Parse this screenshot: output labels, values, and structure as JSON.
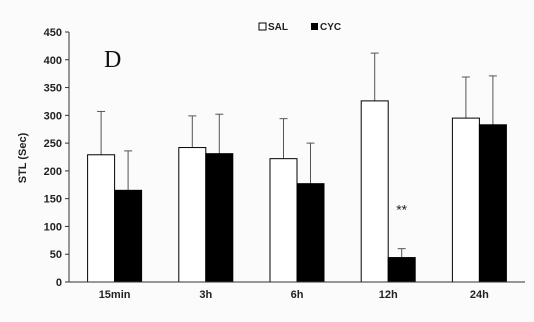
{
  "chart_data": {
    "type": "bar",
    "panel_label": "D",
    "ylabel": "STL (Sec)",
    "xlabel": "",
    "ylim": [
      0,
      450
    ],
    "yticks": [
      0,
      50,
      100,
      150,
      200,
      250,
      300,
      350,
      400,
      450
    ],
    "categories": [
      "15min",
      "3h",
      "6h",
      "12h",
      "24h"
    ],
    "series": [
      {
        "name": "SAL",
        "color": "#ffffff",
        "values": [
          229,
          242,
          222,
          326,
          295
        ],
        "errors": [
          78,
          57,
          72,
          86,
          74
        ]
      },
      {
        "name": "CYC",
        "color": "#000000",
        "values": [
          165,
          231,
          177,
          44,
          283
        ],
        "errors": [
          71,
          71,
          73,
          16,
          88
        ]
      }
    ],
    "annotations": [
      {
        "category": "12h",
        "series": "CYC",
        "text": "**"
      }
    ],
    "legend_position": "top-center",
    "grid": false
  }
}
